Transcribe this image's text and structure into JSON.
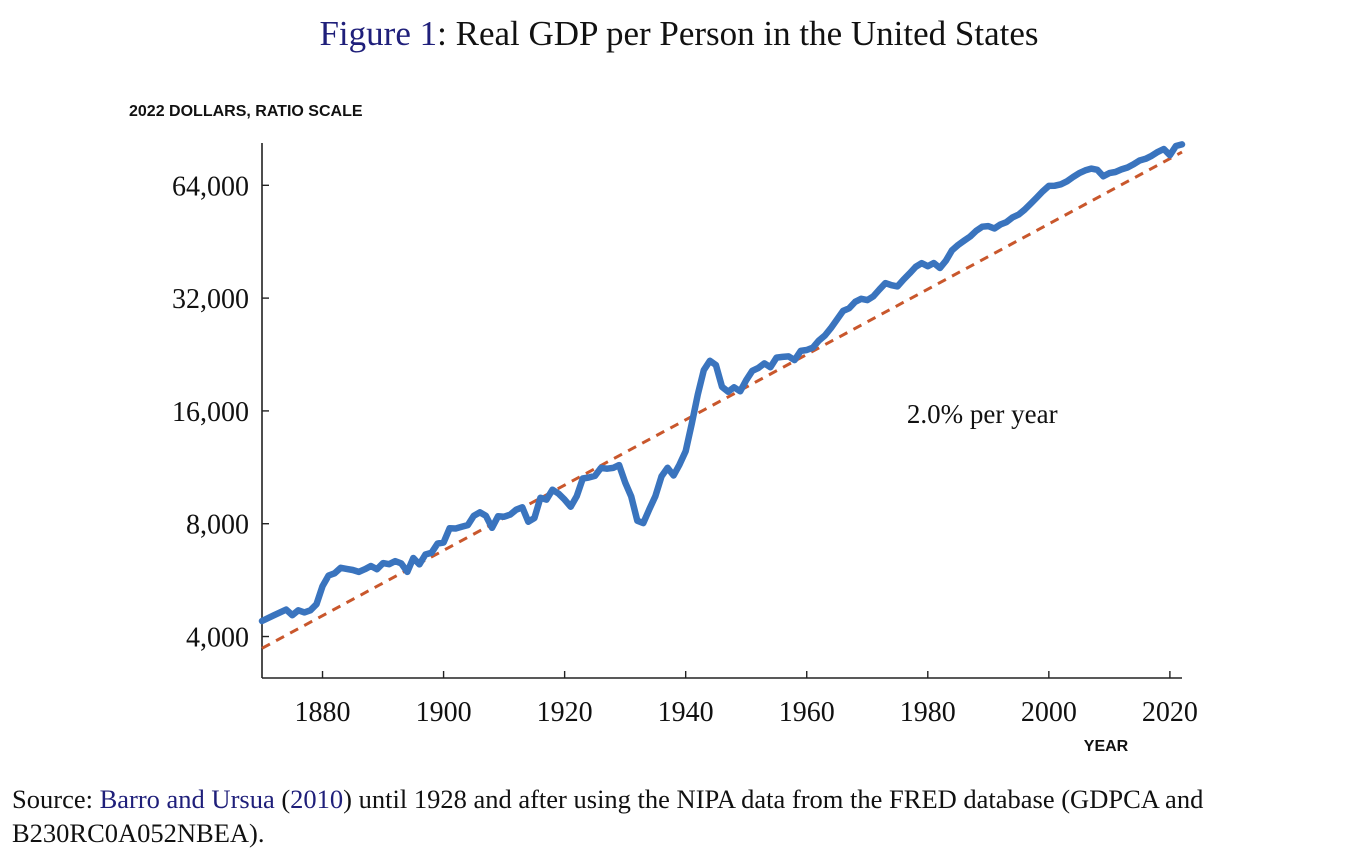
{
  "figure": {
    "title_ref": "Figure 1",
    "title_sep": ":",
    "title_text": " Real GDP per Person in the United States"
  },
  "source": {
    "prefix": "Source: ",
    "cite_authors": "Barro and Ursua",
    "cite_open": " (",
    "cite_year": "2010",
    "cite_close": ")",
    "rest": " until 1928 and after using the NIPA data from the FRED database (GDPCA and B230RC0A052NBEA)."
  },
  "chart_data": {
    "type": "line",
    "title": "Real GDP per Person in the United States",
    "ylabel": "2022 DOLLARS, RATIO SCALE",
    "xlabel": "YEAR",
    "yscale": "log2",
    "xlim": [
      1870,
      2022
    ],
    "ylim": [
      3100,
      83000
    ],
    "x_ticks": [
      1880,
      1900,
      1920,
      1940,
      1960,
      1980,
      2000,
      2020
    ],
    "y_ticks": [
      4000,
      8000,
      16000,
      32000,
      64000
    ],
    "y_tick_labels": [
      "4,000",
      "8,000",
      "16,000",
      "32,000",
      "64,000"
    ],
    "grid": false,
    "annotation": {
      "text": "2.0% per year",
      "x": 1989,
      "y": 15800
    },
    "series": [
      {
        "line_style": "solid",
        "color": "#3a74be",
        "points": [
          [
            1870,
            4400
          ],
          [
            1872,
            4560
          ],
          [
            1874,
            4720
          ],
          [
            1875,
            4560
          ],
          [
            1876,
            4700
          ],
          [
            1877,
            4640
          ],
          [
            1878,
            4700
          ],
          [
            1879,
            4880
          ],
          [
            1880,
            5450
          ],
          [
            1881,
            5820
          ],
          [
            1882,
            5900
          ],
          [
            1883,
            6100
          ],
          [
            1884,
            6060
          ],
          [
            1885,
            6020
          ],
          [
            1886,
            5950
          ],
          [
            1887,
            6050
          ],
          [
            1888,
            6170
          ],
          [
            1889,
            6050
          ],
          [
            1890,
            6280
          ],
          [
            1891,
            6240
          ],
          [
            1892,
            6360
          ],
          [
            1893,
            6270
          ],
          [
            1894,
            5950
          ],
          [
            1895,
            6480
          ],
          [
            1896,
            6230
          ],
          [
            1897,
            6620
          ],
          [
            1898,
            6690
          ],
          [
            1899,
            7080
          ],
          [
            1900,
            7130
          ],
          [
            1901,
            7780
          ],
          [
            1902,
            7770
          ],
          [
            1903,
            7850
          ],
          [
            1904,
            7930
          ],
          [
            1905,
            8400
          ],
          [
            1906,
            8580
          ],
          [
            1907,
            8400
          ],
          [
            1908,
            7800
          ],
          [
            1909,
            8380
          ],
          [
            1910,
            8350
          ],
          [
            1911,
            8460
          ],
          [
            1912,
            8720
          ],
          [
            1913,
            8850
          ],
          [
            1914,
            8100
          ],
          [
            1915,
            8280
          ],
          [
            1916,
            9380
          ],
          [
            1917,
            9280
          ],
          [
            1918,
            9860
          ],
          [
            1919,
            9620
          ],
          [
            1920,
            9280
          ],
          [
            1921,
            8880
          ],
          [
            1922,
            9470
          ],
          [
            1923,
            10560
          ],
          [
            1924,
            10630
          ],
          [
            1925,
            10730
          ],
          [
            1926,
            11270
          ],
          [
            1927,
            11220
          ],
          [
            1928,
            11270
          ],
          [
            1929,
            11470
          ],
          [
            1930,
            10300
          ],
          [
            1931,
            9460
          ],
          [
            1932,
            8150
          ],
          [
            1933,
            8030
          ],
          [
            1934,
            8750
          ],
          [
            1935,
            9480
          ],
          [
            1936,
            10700
          ],
          [
            1937,
            11280
          ],
          [
            1938,
            10760
          ],
          [
            1939,
            11520
          ],
          [
            1940,
            12500
          ],
          [
            1941,
            14760
          ],
          [
            1942,
            17700
          ],
          [
            1943,
            20560
          ],
          [
            1944,
            21770
          ],
          [
            1945,
            21210
          ],
          [
            1946,
            18550
          ],
          [
            1947,
            18010
          ],
          [
            1948,
            18500
          ],
          [
            1949,
            18050
          ],
          [
            1950,
            19320
          ],
          [
            1951,
            20470
          ],
          [
            1952,
            20830
          ],
          [
            1953,
            21420
          ],
          [
            1954,
            20930
          ],
          [
            1955,
            22200
          ],
          [
            1956,
            22300
          ],
          [
            1957,
            22360
          ],
          [
            1958,
            21860
          ],
          [
            1959,
            23140
          ],
          [
            1960,
            23270
          ],
          [
            1961,
            23600
          ],
          [
            1962,
            24640
          ],
          [
            1963,
            25430
          ],
          [
            1964,
            26620
          ],
          [
            1965,
            28050
          ],
          [
            1966,
            29580
          ],
          [
            1967,
            30060
          ],
          [
            1968,
            31280
          ],
          [
            1969,
            31860
          ],
          [
            1970,
            31610
          ],
          [
            1971,
            32340
          ],
          [
            1972,
            33730
          ],
          [
            1973,
            35090
          ],
          [
            1974,
            34640
          ],
          [
            1975,
            34390
          ],
          [
            1976,
            35880
          ],
          [
            1977,
            37250
          ],
          [
            1978,
            38800
          ],
          [
            1979,
            39680
          ],
          [
            1980,
            38930
          ],
          [
            1981,
            39700
          ],
          [
            1982,
            38500
          ],
          [
            1983,
            40270
          ],
          [
            1984,
            42930
          ],
          [
            1985,
            44360
          ],
          [
            1986,
            45540
          ],
          [
            1987,
            46740
          ],
          [
            1988,
            48400
          ],
          [
            1989,
            49640
          ],
          [
            1990,
            49800
          ],
          [
            1991,
            49080
          ],
          [
            1992,
            50290
          ],
          [
            1993,
            51040
          ],
          [
            1994,
            52530
          ],
          [
            1995,
            53460
          ],
          [
            1996,
            55080
          ],
          [
            1997,
            57150
          ],
          [
            1998,
            59330
          ],
          [
            1999,
            61680
          ],
          [
            2000,
            63750
          ],
          [
            2001,
            63860
          ],
          [
            2002,
            64400
          ],
          [
            2003,
            65580
          ],
          [
            2004,
            67350
          ],
          [
            2005,
            68960
          ],
          [
            2006,
            70160
          ],
          [
            2007,
            70900
          ],
          [
            2008,
            70410
          ],
          [
            2009,
            67630
          ],
          [
            2010,
            68990
          ],
          [
            2011,
            69470
          ],
          [
            2012,
            70560
          ],
          [
            2013,
            71420
          ],
          [
            2014,
            72800
          ],
          [
            2015,
            74520
          ],
          [
            2016,
            75300
          ],
          [
            2017,
            76700
          ],
          [
            2018,
            78580
          ],
          [
            2019,
            80000
          ],
          [
            2020,
            77000
          ],
          [
            2021,
            81500
          ],
          [
            2022,
            82300
          ]
        ]
      },
      {
        "line_style": "dashed",
        "color": "#c9572c",
        "points": [
          [
            1870,
            3720
          ],
          [
            2022,
            78500
          ]
        ]
      }
    ]
  }
}
